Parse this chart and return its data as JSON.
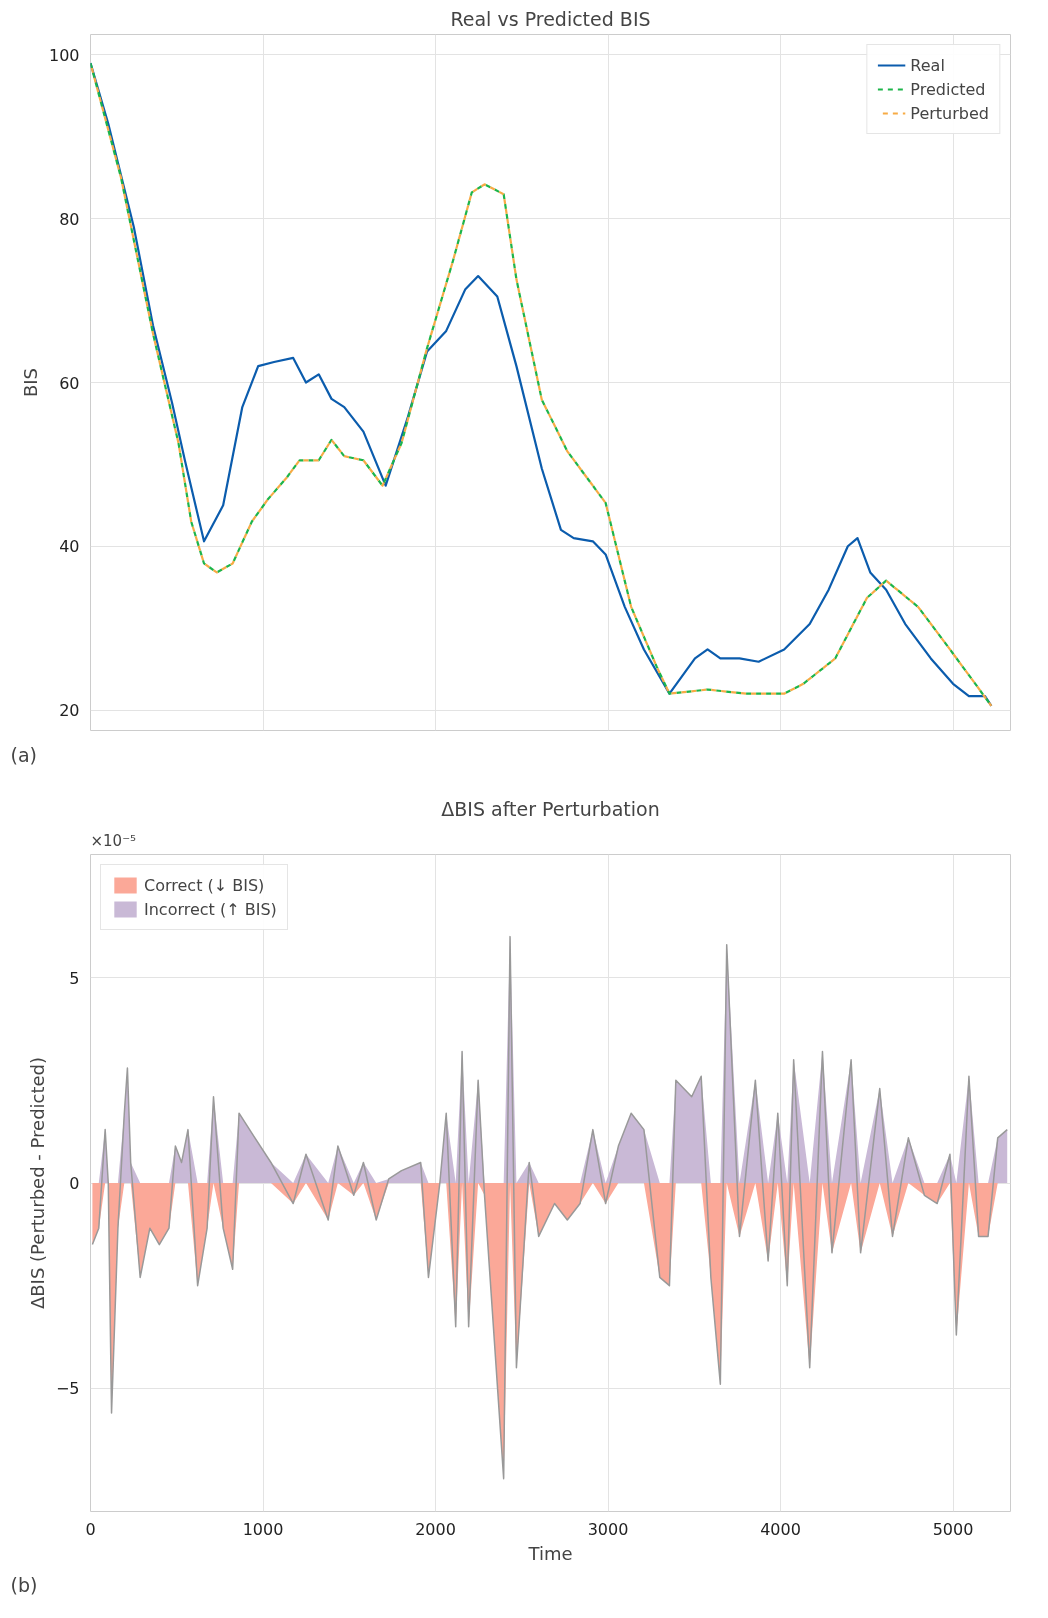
{
  "chart_data": [
    {
      "type": "line",
      "title": "Real vs Predicted BIS",
      "ylabel": "BIS",
      "annotations": [
        "(a)"
      ],
      "xlim": [
        0,
        5333
      ],
      "xticks": [
        0,
        1000,
        2000,
        3000,
        4000,
        5000
      ],
      "ylim": [
        17.5,
        102.5
      ],
      "yticks": [
        20,
        40,
        60,
        80,
        100
      ],
      "tick_labels": "y",
      "grid": true,
      "legend": "top right",
      "series": [
        {
          "name": "Real",
          "color": "#0b5cad",
          "line_style": "solid",
          "x": [
            0,
            103,
            251,
            362,
            473,
            547,
            658,
            769,
            880,
            972,
            1064,
            1175,
            1249,
            1323,
            1397,
            1471,
            1582,
            1711,
            1840,
            1951,
            2062,
            2173,
            2247,
            2358,
            2469,
            2616,
            2727,
            2801,
            2912,
            2986,
            3097,
            3208,
            3356,
            3504,
            3577,
            3651,
            3762,
            3873,
            4021,
            4169,
            4279,
            4390,
            4446,
            4520,
            4612,
            4723,
            4871,
            5000,
            5092,
            5185,
            5222
          ],
          "values": [
            99,
            91.6,
            79,
            67,
            57.5,
            50.5,
            40.6,
            45,
            57,
            62,
            62.5,
            63,
            60,
            61,
            58,
            57,
            54,
            47.4,
            55.8,
            63.8,
            66.3,
            71.4,
            73,
            70.5,
            62,
            49.5,
            42,
            41,
            40.6,
            39,
            32.6,
            27.4,
            22,
            26.3,
            27.4,
            26.3,
            26.3,
            25.9,
            27.4,
            30.5,
            34.7,
            40,
            41,
            36.8,
            34.7,
            30.5,
            26.3,
            23.2,
            21.7,
            21.7,
            20.5
          ]
        },
        {
          "name": "Predicted",
          "color": "#1db54a",
          "line_style": "dashed",
          "x": [
            0,
            177,
            362,
            510,
            584,
            658,
            732,
            824,
            935,
            1027,
            1138,
            1212,
            1323,
            1397,
            1471,
            1582,
            1693,
            1803,
            1951,
            2099,
            2210,
            2284,
            2395,
            2469,
            2616,
            2764,
            2912,
            2986,
            3134,
            3282,
            3356,
            3577,
            3800,
            4021,
            4132,
            4317,
            4501,
            4612,
            4797,
            4982,
            5129,
            5222
          ],
          "values": [
            99,
            85,
            66,
            52.6,
            43,
            37.9,
            36.8,
            37.9,
            43,
            45.7,
            48.4,
            50.5,
            50.5,
            53,
            51,
            50.5,
            47.4,
            52.6,
            64.2,
            74.7,
            83.2,
            84.2,
            83,
            72.6,
            57.9,
            51.6,
            47.4,
            45.3,
            32.6,
            25.3,
            22,
            22.5,
            22,
            22,
            23.2,
            26.3,
            33.7,
            35.8,
            32.6,
            27.4,
            23.2,
            20.5
          ]
        },
        {
          "name": "Perturbed",
          "color": "#f7ab45",
          "line_style": "dashed",
          "x": [
            0,
            177,
            362,
            510,
            584,
            658,
            732,
            824,
            935,
            1027,
            1138,
            1212,
            1323,
            1397,
            1471,
            1582,
            1693,
            1803,
            1951,
            2099,
            2210,
            2284,
            2395,
            2469,
            2616,
            2764,
            2912,
            2986,
            3134,
            3282,
            3356,
            3577,
            3800,
            4021,
            4132,
            4317,
            4501,
            4612,
            4797,
            4982,
            5129,
            5222
          ],
          "values": [
            99,
            85,
            66,
            52.6,
            43,
            37.9,
            36.8,
            37.9,
            43,
            45.7,
            48.4,
            50.5,
            50.5,
            53,
            51,
            50.5,
            47.4,
            52.6,
            64.2,
            74.7,
            83.2,
            84.2,
            83,
            72.6,
            57.9,
            51.6,
            47.4,
            45.3,
            32.6,
            25.3,
            22,
            22.5,
            22,
            22,
            23.2,
            26.3,
            33.7,
            35.8,
            32.6,
            27.4,
            23.2,
            20.5
          ]
        }
      ]
    },
    {
      "type": "area",
      "title": "ΔBIS after Perturbation",
      "xlabel": "Time",
      "ylabel": "ΔBIS (Perturbed - Predicted)",
      "annotations": [
        "(b)",
        "×10⁻⁵"
      ],
      "xlim": [
        0,
        5333
      ],
      "xticks": [
        0,
        1000,
        2000,
        3000,
        4000,
        5000
      ],
      "ylim": [
        -8,
        8
      ],
      "yticks": [
        {
          "value": -5,
          "label": "−5"
        },
        0,
        5
      ],
      "grid": true,
      "legend": "top left",
      "x": [
        11,
        48,
        85,
        103,
        122,
        159,
        196,
        214,
        233,
        288,
        344,
        399,
        455,
        492,
        528,
        565,
        621,
        676,
        713,
        769,
        824,
        861,
        953,
        1046,
        1175,
        1249,
        1378,
        1434,
        1526,
        1582,
        1656,
        1729,
        1803,
        1914,
        1959,
        2025,
        2062,
        2117,
        2154,
        2192,
        2247,
        2284,
        2395,
        2432,
        2469,
        2543,
        2598,
        2690,
        2764,
        2838,
        2912,
        2986,
        3060,
        3134,
        3208,
        3300,
        3356,
        3393,
        3485,
        3540,
        3596,
        3651,
        3688,
        3762,
        3854,
        3928,
        3984,
        4039,
        4076,
        4169,
        4243,
        4298,
        4409,
        4464,
        4575,
        4649,
        4741,
        4834,
        4908,
        4982,
        5019,
        5092,
        5148,
        5203,
        5259,
        5314
      ],
      "series": [
        {
          "name": "Correct (↓ BIS)",
          "type": "area",
          "color": "#fba898",
          "values": [
            -1.5,
            -1.1,
            0,
            0,
            -5.6,
            -1.1,
            0,
            0,
            0,
            -2.3,
            -1.1,
            -1.5,
            -1.1,
            0,
            0,
            0,
            -2.5,
            -1.1,
            0,
            -1.1,
            -2.1,
            0,
            0,
            0,
            -0.5,
            0,
            -0.9,
            0,
            -0.3,
            0,
            -0.9,
            0,
            0,
            0,
            -2.3,
            0,
            0,
            -3.5,
            0,
            -3.5,
            0,
            -0.3,
            -7.2,
            0,
            -4.5,
            0,
            -1.3,
            -0.5,
            -0.9,
            -0.5,
            0,
            -0.5,
            0,
            0,
            0,
            -2.3,
            -2.5,
            0,
            0,
            0,
            -2.3,
            -4.9,
            0,
            -1.3,
            0,
            -1.9,
            0,
            -2.5,
            0,
            -4.5,
            0,
            -1.7,
            0,
            -1.7,
            0,
            -1.3,
            0,
            -0.3,
            -0.5,
            0,
            -3.7,
            0,
            -1.3,
            -1.3,
            0,
            0
          ]
        },
        {
          "name": "Incorrect (↑ BIS)",
          "type": "area",
          "color": "#c9b9d6",
          "values": [
            0,
            0,
            1.3,
            0,
            0,
            0,
            1.7,
            2.8,
            0.5,
            0,
            0,
            0,
            0,
            0.9,
            0.5,
            1.3,
            0,
            0,
            2.1,
            0,
            0,
            1.7,
            1.1,
            0.5,
            0,
            0.7,
            0,
            0.9,
            0,
            0.5,
            0,
            0.1,
            0.3,
            0.5,
            0,
            0,
            1.7,
            0,
            3.2,
            0,
            2.5,
            0,
            0,
            6.0,
            0,
            0.5,
            0,
            0,
            0,
            0,
            1.3,
            0,
            0.9,
            1.7,
            1.3,
            0,
            0,
            2.5,
            2.1,
            2.6,
            0,
            0,
            5.8,
            0,
            2.5,
            0,
            1.7,
            0,
            3.0,
            0,
            3.2,
            0,
            3.0,
            0,
            2.3,
            0,
            1.1,
            0,
            0,
            0.7,
            0,
            2.6,
            0,
            0,
            1.1,
            1.3
          ]
        },
        {
          "type": "line",
          "color": "#999999",
          "line_style": "solid",
          "values": [
            -1.5,
            -1.1,
            1.3,
            0,
            -5.6,
            -1.1,
            1.7,
            2.8,
            0.5,
            -2.3,
            -1.1,
            -1.5,
            -1.1,
            0.9,
            0.5,
            1.3,
            -2.5,
            -1.1,
            2.1,
            -1.1,
            -2.1,
            1.7,
            1.1,
            0.5,
            -0.5,
            0.7,
            -0.9,
            0.9,
            -0.3,
            0.5,
            -0.9,
            0.1,
            0.3,
            0.5,
            -2.3,
            0,
            1.7,
            -3.5,
            3.2,
            -3.5,
            2.5,
            -0.3,
            -7.2,
            6.0,
            -4.5,
            0.5,
            -1.3,
            -0.5,
            -0.9,
            -0.5,
            1.3,
            -0.5,
            0.9,
            1.7,
            1.3,
            -2.3,
            -2.5,
            2.5,
            2.1,
            2.6,
            -2.3,
            -4.9,
            5.8,
            -1.3,
            2.5,
            -1.9,
            1.7,
            -2.5,
            3.0,
            -4.5,
            3.2,
            -1.7,
            3.0,
            -1.7,
            2.3,
            -1.3,
            1.1,
            -0.3,
            -0.5,
            0.7,
            -3.7,
            2.6,
            -1.3,
            -1.3,
            1.1,
            1.3
          ]
        }
      ]
    }
  ]
}
